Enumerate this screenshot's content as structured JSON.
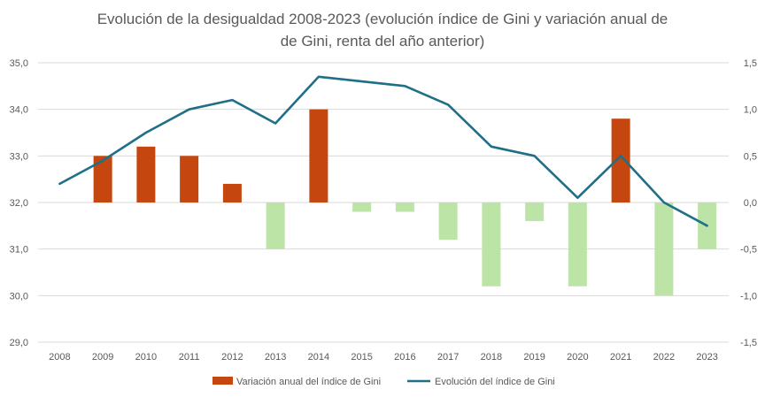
{
  "chart_data": {
    "type": "bar+line",
    "title_lines": [
      "Evolución de la desigualdad 2008-2023 (evolución índice de Gini y variación anual de",
      "de Gini, renta del año anterior)"
    ],
    "categories": [
      "2008",
      "2009",
      "2010",
      "2011",
      "2012",
      "2013",
      "2014",
      "2015",
      "2016",
      "2017",
      "2018",
      "2019",
      "2020",
      "2021",
      "2022",
      "2023"
    ],
    "y_left": {
      "ylim": [
        29.0,
        35.0
      ],
      "ticks": [
        "29,0",
        "30,0",
        "31,0",
        "32,0",
        "33,0",
        "34,0",
        "35,0"
      ]
    },
    "y_right": {
      "ylim": [
        -1.5,
        1.5
      ],
      "ticks": [
        "-1,5",
        "-1,0",
        "-0,5",
        "0,0",
        "0,5",
        "1,0",
        "1,5"
      ]
    },
    "grid": true,
    "legend_position": "bottom",
    "series": [
      {
        "name": "Variación anual del índice de Gini",
        "type": "bar",
        "axis": "right",
        "values": [
          null,
          0.5,
          0.6,
          0.5,
          0.2,
          -0.5,
          1.0,
          -0.1,
          -0.1,
          -0.4,
          -0.9,
          -0.2,
          -0.9,
          0.9,
          -1.0,
          -0.5
        ],
        "positive_color": "#c5460f",
        "negative_color": "#bde4a7"
      },
      {
        "name": "Evolución del índice de Gini",
        "type": "line",
        "axis": "left",
        "values": [
          32.4,
          32.9,
          33.5,
          34.0,
          34.2,
          33.7,
          34.7,
          34.6,
          34.5,
          34.1,
          33.2,
          33.0,
          32.1,
          33.0,
          32.0,
          31.5
        ],
        "color": "#1f6f86"
      }
    ]
  }
}
